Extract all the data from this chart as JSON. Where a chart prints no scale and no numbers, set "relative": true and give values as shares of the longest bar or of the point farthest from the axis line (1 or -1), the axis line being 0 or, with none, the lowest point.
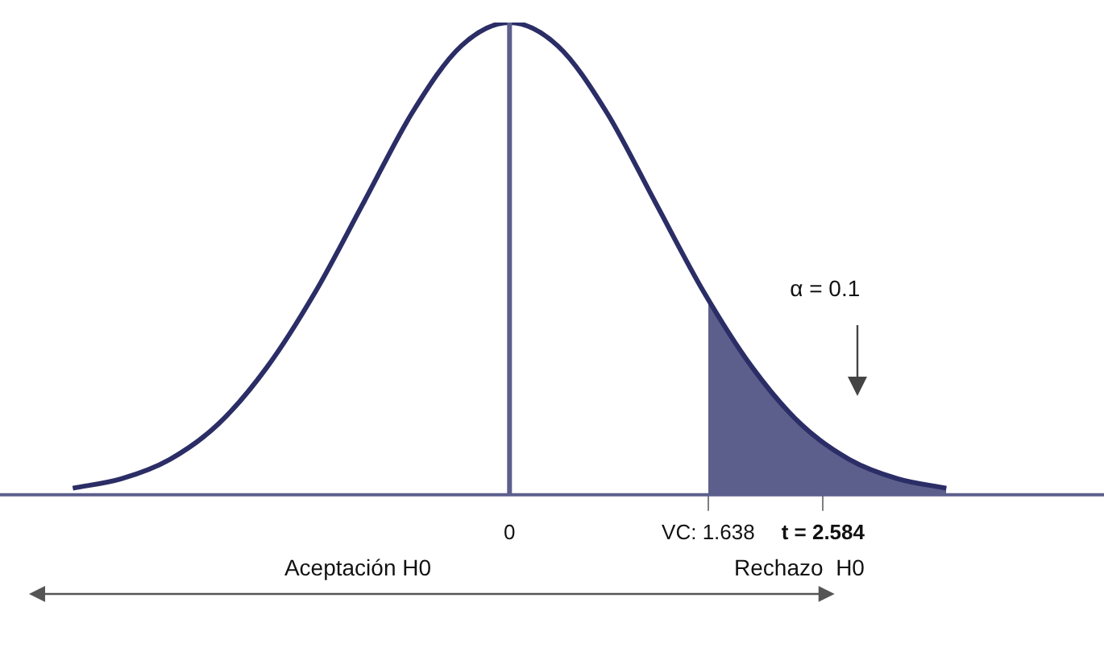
{
  "chart_data": {
    "type": "line",
    "relative": true,
    "x": [
      -3.6,
      -3.2,
      -2.8,
      -2.4,
      -2.0,
      -1.6,
      -1.2,
      -0.8,
      -0.4,
      0,
      0.4,
      0.8,
      1.2,
      1.6,
      2.0,
      2.4,
      2.8,
      3.2,
      3.6
    ],
    "series": [
      {
        "color": "#2b2d66",
        "values": [
          0.014,
          0.034,
          0.075,
          0.15,
          0.27,
          0.43,
          0.62,
          0.81,
          0.95,
          1,
          0.95,
          0.81,
          0.62,
          0.43,
          0.27,
          0.15,
          0.075,
          0.034,
          0.014
        ]
      },
      {
        "type": "area",
        "color": "#5c5f8c",
        "x": [
          1.638,
          2.0,
          2.4,
          2.8,
          3.2,
          3.6
        ],
        "values": [
          0.41,
          0.27,
          0.15,
          0.075,
          0.034,
          0.014
        ]
      }
    ],
    "xlim": [
      -4.2,
      4.9
    ],
    "xticks": [
      0,
      {
        "value": 1.638,
        "label": "VC: 1.638"
      },
      {
        "value": 2.584,
        "label": "t = 2.584"
      }
    ],
    "ref_lines": [
      {
        "axis": "x",
        "value": 0,
        "color": "#5c5f8c"
      }
    ],
    "annotations": [
      "α = 0.1",
      "Aceptación H0",
      "Rechazo  H0"
    ]
  }
}
